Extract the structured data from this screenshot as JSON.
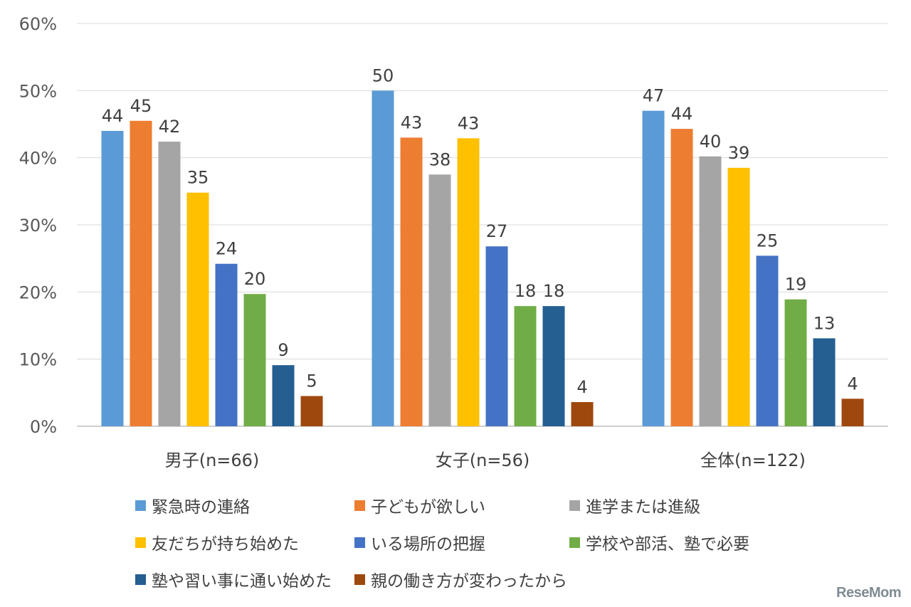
{
  "chart_data": {
    "type": "bar",
    "categories": [
      "男子(n=66)",
      "女子(n=56)",
      "全体(n=122)"
    ],
    "y_ticks": [
      "0%",
      "10%",
      "20%",
      "30%",
      "40%",
      "50%",
      "60%"
    ],
    "ylim": [
      0,
      60
    ],
    "grid": true,
    "legend_position": "bottom",
    "series": [
      {
        "name": "緊急時の連絡",
        "color": "#5b9bd5",
        "values": [
          44,
          50,
          47
        ],
        "labels": [
          "44",
          "50",
          "47"
        ]
      },
      {
        "name": "子どもが欲しい",
        "color": "#ed7d31",
        "values": [
          45.5,
          43,
          44.3
        ],
        "labels": [
          "45",
          "43",
          "44"
        ]
      },
      {
        "name": "進学または進級",
        "color": "#a5a5a5",
        "values": [
          42.4,
          37.5,
          40.2
        ],
        "labels": [
          "42",
          "38",
          "40"
        ]
      },
      {
        "name": "友だちが持ち始めた",
        "color": "#ffc000",
        "values": [
          34.8,
          42.9,
          38.5
        ],
        "labels": [
          "35",
          "43",
          "39"
        ]
      },
      {
        "name": "いる場所の把握",
        "color": "#4472c4",
        "values": [
          24.2,
          26.8,
          25.4
        ],
        "labels": [
          "24",
          "27",
          "25"
        ]
      },
      {
        "name": "学校や部活、塾で必要",
        "color": "#70ad47",
        "values": [
          19.7,
          17.9,
          18.9
        ],
        "labels": [
          "20",
          "18",
          "19"
        ]
      },
      {
        "name": "塾や習い事に通い始めた",
        "color": "#255e91",
        "values": [
          9.1,
          17.9,
          13.1
        ],
        "labels": [
          "9",
          "18",
          "13"
        ]
      },
      {
        "name": "親の働き方が変わったから",
        "color": "#9e480e",
        "values": [
          4.5,
          3.6,
          4.1
        ],
        "labels": [
          "5",
          "4",
          "4"
        ]
      }
    ]
  },
  "watermark": "ReseMom"
}
